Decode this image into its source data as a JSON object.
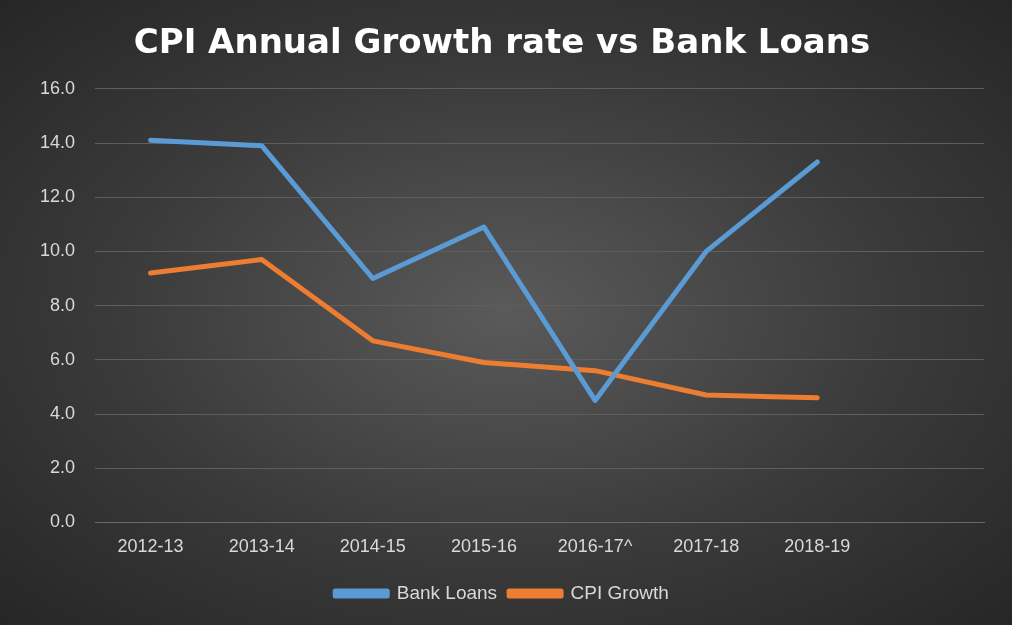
{
  "chart_data": {
    "type": "line",
    "title": "CPI Annual Growth rate vs Bank Loans",
    "categories": [
      "2012-13",
      "2013-14",
      "2014-15",
      "2015-16",
      "2016-17^",
      "2017-18",
      "2018-19",
      null
    ],
    "series": [
      {
        "name": "Bank Loans",
        "color": "#5b9bd5",
        "values": [
          14.1,
          13.9,
          9.0,
          10.9,
          4.5,
          10.0,
          13.3,
          null
        ]
      },
      {
        "name": "CPI Growth",
        "color": "#ed7d31",
        "values": [
          9.2,
          9.7,
          6.7,
          5.9,
          5.6,
          4.7,
          4.6,
          null
        ]
      }
    ],
    "ylim": [
      0,
      16
    ],
    "yticks": [
      {
        "value": 0,
        "label": "0.0"
      },
      {
        "value": 2,
        "label": "2.0"
      },
      {
        "value": 4,
        "label": "4.0"
      },
      {
        "value": 6,
        "label": "6.0"
      },
      {
        "value": 8,
        "label": "8.0"
      },
      {
        "value": 10,
        "label": "10.0"
      },
      {
        "value": 12,
        "label": "12.0"
      },
      {
        "value": 14,
        "label": "14.0"
      },
      {
        "value": 16,
        "label": "16.0"
      }
    ],
    "grid": "y",
    "legend": "bottom",
    "marker": "none",
    "line_style": "solid"
  }
}
